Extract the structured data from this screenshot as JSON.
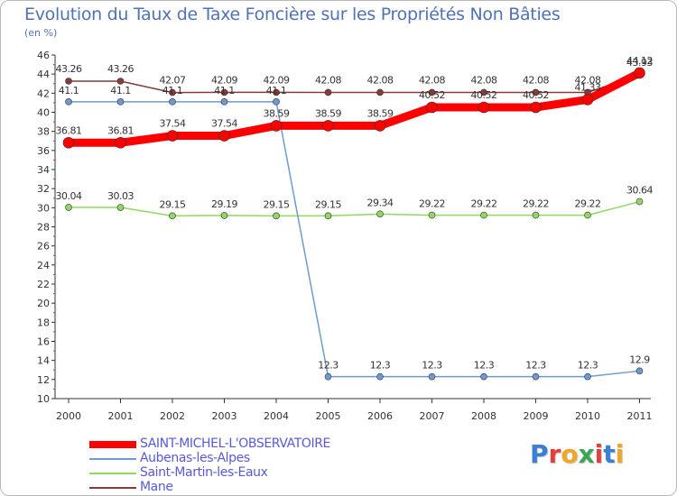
{
  "header": {
    "title": "Evolution du Taux de Taxe Foncière sur les Propriétés Non Bâties",
    "unit": "(en %)"
  },
  "brand": {
    "text": "Proxiti",
    "letter_colors": [
      "#3a7fd5",
      "#e0413c",
      "#f1a52a",
      "#3aa655",
      "#e0413c",
      "#3a7fd5",
      "#f1a52a"
    ]
  },
  "chart_data": {
    "type": "line",
    "title": "Evolution du Taux de Taxe Foncière sur les Propriétés Non Bâties",
    "ylabel": "(en %)",
    "xlabel": "",
    "x": [
      "2000",
      "2001",
      "2002",
      "2003",
      "2004",
      "2005",
      "2006",
      "2007",
      "2008",
      "2009",
      "2010",
      "2011"
    ],
    "ylim": [
      10,
      46
    ],
    "yticks": [
      10,
      12,
      14,
      16,
      18,
      20,
      22,
      24,
      26,
      28,
      30,
      32,
      34,
      36,
      38,
      40,
      42,
      44,
      46
    ],
    "grid": false,
    "legend": "bottom-left",
    "series": [
      {
        "name": "SAINT-MICHEL-L'OBSERVATOIRE",
        "color": "#ff0000",
        "values": [
          36.81,
          36.81,
          37.54,
          37.54,
          38.59,
          38.59,
          38.59,
          40.52,
          40.52,
          40.52,
          41.33,
          44.12
        ],
        "labels": [
          "36.81",
          "36.81",
          "37.54",
          "37.54",
          "38.59",
          "38.59",
          "38.59",
          "40.52",
          "40.52",
          "40.52",
          "41.33",
          "44.12"
        ]
      },
      {
        "name": "Aubenas-les-Alpes",
        "color": "#6f9ad1",
        "values": [
          41.1,
          41.1,
          41.1,
          41.1,
          41.1,
          12.3,
          12.3,
          12.3,
          12.3,
          12.3,
          12.3,
          12.9
        ],
        "labels": [
          "41.1",
          "41.1",
          "41.1",
          "41.1",
          "41.1",
          "12.3",
          "12.3",
          "12.3",
          "12.3",
          "12.3",
          "12.3",
          "12.9"
        ]
      },
      {
        "name": "Saint-Martin-les-Eaux",
        "color": "#90d860",
        "values": [
          30.04,
          30.03,
          29.15,
          29.19,
          29.15,
          29.15,
          29.34,
          29.22,
          29.22,
          29.22,
          29.22,
          30.64
        ],
        "labels": [
          "30.04",
          "30.03",
          "29.15",
          "29.19",
          "29.15",
          "29.15",
          "29.34",
          "29.22",
          "29.22",
          "29.22",
          "29.22",
          "30.64"
        ]
      },
      {
        "name": "Mane",
        "color": "#8b3a3a",
        "values": [
          43.26,
          43.26,
          42.07,
          42.09,
          42.09,
          42.08,
          42.08,
          42.08,
          42.08,
          42.08,
          42.08,
          43.93
        ],
        "labels": [
          "43.26",
          "43.26",
          "42.07",
          "42.09",
          "42.09",
          "42.08",
          "42.08",
          "42.08",
          "42.08",
          "42.08",
          "42.08",
          "43.93"
        ]
      }
    ]
  }
}
